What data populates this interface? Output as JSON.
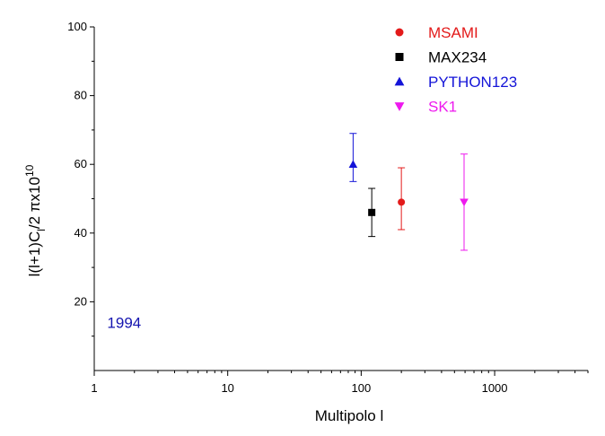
{
  "chart_data": {
    "type": "scatter",
    "title": "",
    "xlabel": "Multipolo l",
    "ylabel": "l(l+1)C",
    "ylabel_sub": "l",
    "ylabel_tail": "/2 πx10",
    "ylabel_sup": "10",
    "x_scale": "log",
    "xlim": [
      1,
      5000
    ],
    "ylim": [
      0,
      100
    ],
    "x_ticks": [
      1,
      10,
      100,
      1000
    ],
    "x_tick_labels": [
      "1",
      "10",
      "100",
      "1000"
    ],
    "y_ticks": [
      20,
      40,
      60,
      80,
      100
    ],
    "y_tick_labels": [
      "20",
      "40",
      "60",
      "80",
      "100"
    ],
    "legend_position": "top-right",
    "annotation": {
      "text": "1994",
      "color": "#1515b0",
      "x": 1.25,
      "y": 14
    },
    "series": [
      {
        "name": "MSAMI",
        "marker": "circle",
        "color": "#e31a1a",
        "x": 200,
        "y": 49,
        "y_low": 41,
        "y_high": 59
      },
      {
        "name": "MAX234",
        "marker": "square",
        "color": "#000000",
        "x": 120,
        "y": 46,
        "y_low": 39,
        "y_high": 53
      },
      {
        "name": "PYTHON123",
        "marker": "triangle-up",
        "color": "#1414d8",
        "x": 87,
        "y": 60,
        "y_low": 55,
        "y_high": 69
      },
      {
        "name": "SK1",
        "marker": "triangle-down",
        "color": "#ee19ee",
        "x": 590,
        "y": 49,
        "y_low": 35,
        "y_high": 63
      }
    ]
  }
}
